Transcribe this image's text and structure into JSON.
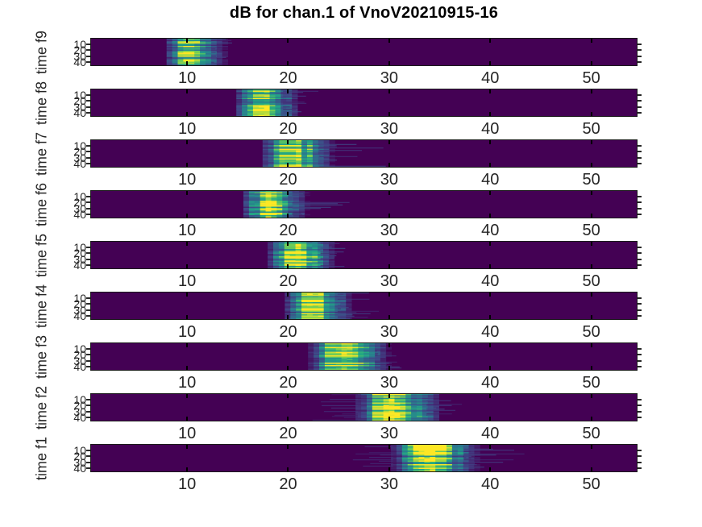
{
  "figure": {
    "title": "dB for chan.1 of VnoV20210915-16",
    "background_color": "#ffffff",
    "axis_text_color": "#262626"
  },
  "chart_data": {
    "type": "heatmap",
    "title": "dB for chan.1 of VnoV20210915-16",
    "colormap": "viridis",
    "palette": [
      "#440154",
      "#414487",
      "#2a788e",
      "#22a884",
      "#7ad151",
      "#fde725"
    ],
    "x_ticks": [
      10,
      20,
      30,
      40,
      50
    ],
    "y_ticks": [
      10,
      20,
      30,
      40
    ],
    "x_range": [
      0.5,
      54.5
    ],
    "y_range": [
      0.5,
      45.5
    ],
    "legend": "none",
    "grid": false,
    "subplots": [
      {
        "ylabel": "time f9",
        "blob_center": 10.2,
        "blob_halfwidth": 1.2,
        "streak_end": 14.5,
        "left_tail": false
      },
      {
        "ylabel": "time f8",
        "blob_center": 17.2,
        "blob_halfwidth": 1.3,
        "streak_end": 23.0,
        "left_tail": false
      },
      {
        "ylabel": "time f7",
        "blob_center": 20.3,
        "blob_halfwidth": 1.8,
        "streak_end": 30.0,
        "left_tail": false
      },
      {
        "ylabel": "time f6",
        "blob_center": 18.0,
        "blob_halfwidth": 1.4,
        "streak_end": 27.0,
        "left_tail": false
      },
      {
        "ylabel": "time f5",
        "blob_center": 20.6,
        "blob_halfwidth": 1.6,
        "streak_end": 26.0,
        "left_tail": false
      },
      {
        "ylabel": "time f4",
        "blob_center": 22.3,
        "blob_halfwidth": 1.6,
        "streak_end": 29.0,
        "left_tail": false
      },
      {
        "ylabel": "time f3",
        "blob_center": 25.3,
        "blob_halfwidth": 2.3,
        "streak_end": 31.5,
        "left_tail": false
      },
      {
        "ylabel": "time f2",
        "blob_center": 30.2,
        "blob_halfwidth": 2.5,
        "streak_end": 38.5,
        "left_tail": true
      },
      {
        "ylabel": "time f1",
        "blob_center": 33.8,
        "blob_halfwidth": 2.6,
        "streak_end": 43.5,
        "left_tail": true
      }
    ]
  }
}
